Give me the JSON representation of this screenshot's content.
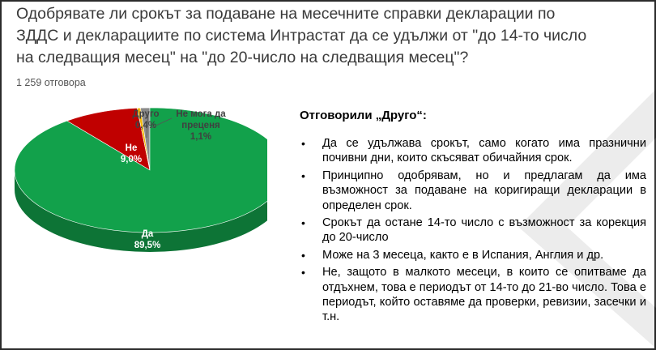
{
  "question": "Одобрявате ли срокът за подаване на месечните справки декларации по\nЗДДС и декларациите по система Интрастат да се удължи от \"до 14-то число\nна следващия месец\" на \"до 20-число на следващия месец\"?",
  "responses": "1 259 отговора",
  "chart_data": {
    "type": "pie",
    "title": "",
    "categories": [
      "Да",
      "Не",
      "Друго",
      "Не мога да преценя"
    ],
    "values": [
      89.5,
      9.0,
      0.4,
      1.1
    ],
    "value_labels": [
      "89,5%",
      "9,0%",
      "0,4%",
      "1,1%"
    ],
    "label_lines": [
      [
        "Да",
        "89,5%"
      ],
      [
        "Не",
        "9,0%"
      ],
      [
        "Друго",
        "0,4%"
      ],
      [
        "Не мога да",
        "преценя",
        "1,1%"
      ]
    ],
    "colors": [
      "#12a14b",
      "#c00000",
      "#f5b800",
      "#8a8a8a"
    ],
    "label_colors": [
      "#ffffff",
      "#ffffff",
      "#404040",
      "#404040"
    ],
    "style": "3d"
  },
  "others": {
    "title": "Отговорили „Друго“:",
    "items": [
      "Да се удължава срокът, само когато има празнични почивни дни, които скъсяват обичайния срок.",
      "Принципно одобрявам, но и предлагам да има възможност за подаване на коригиращи декларации в определен срок.",
      "Срокът да остане 14-то число с възможност за корекция до 20-число",
      "Може на 3 месеца, както е в Испания, Англия и др.",
      "Не, защото в малкото месеци, в които се опитваме да отдъхнем, това е периодът от 14-то до 21-во число. Това е периодът, който оставяме да проверки, ревизии, засечки и т.н."
    ]
  }
}
